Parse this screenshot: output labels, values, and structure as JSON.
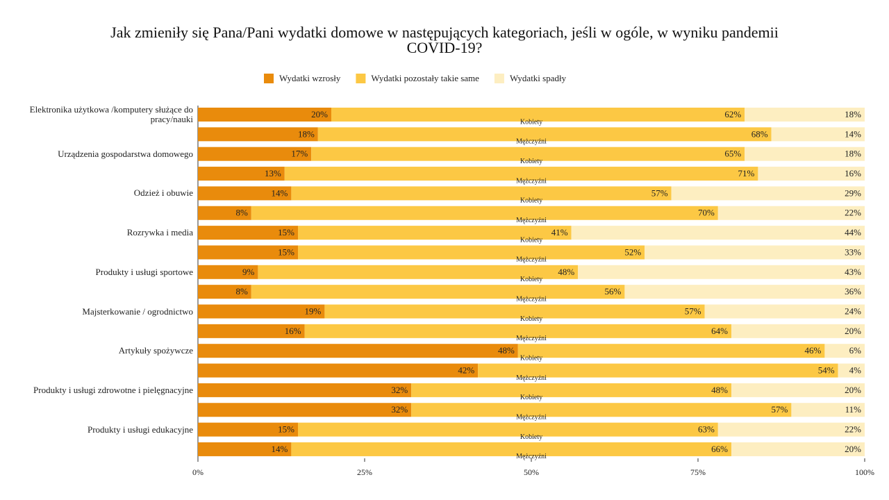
{
  "chart_data": {
    "type": "stacked-bar",
    "orientation": "horizontal",
    "title": "Jak zmieniły się Pana/Pani wydatki domowe w następujących kategoriach, jeśli w ogóle, w wyniku pandemii COVID-19?",
    "categories": [
      "Elektronika użytkowa /komputery służące do pracy/nauki",
      null,
      "Urządzenia gospodarstwa domowego",
      null,
      "Odzież i obuwie",
      null,
      "Rozrywka i media",
      null,
      "Produkty i usługi sportowe",
      null,
      "Majsterkowanie / ogrodnictwo",
      null,
      "Artykuły spożywcze",
      null,
      "Produkty i usługi zdrowotne i pielęgnacyjne",
      null,
      "Produkty i usługi edukacyjne",
      null
    ],
    "groups": [
      "Kobiety",
      "Mężczyźni",
      "Kobiety",
      "Mężczyźni",
      "Kobiety",
      "Mężczyźni",
      "Kobiety",
      "Mężczyźni",
      "Kobiety",
      "Mężczyźni",
      "Kobiety",
      "Mężczyźni",
      "Kobiety",
      "Mężczyźni",
      "Kobiety",
      "Mężczyźni",
      "Kobiety",
      "Mężczyźni"
    ],
    "series": [
      {
        "name": "Wydatki wzrosły",
        "color": "#e98b0c",
        "values": [
          20,
          18,
          17,
          13,
          14,
          8,
          15,
          15,
          9,
          8,
          19,
          16,
          48,
          42,
          32,
          32,
          15,
          14
        ],
        "value_labels": [
          "20%",
          "18%",
          "17%",
          "13%",
          "14%",
          "8%",
          "15%",
          "15%",
          "9%",
          "8%",
          "19%",
          "16%",
          "48%",
          "42%",
          "32%",
          "32%",
          "15%",
          "14%"
        ]
      },
      {
        "name": "Wydatki pozostały takie same",
        "color": "#fcc844",
        "values": [
          62,
          68,
          65,
          71,
          57,
          70,
          41,
          52,
          48,
          56,
          57,
          64,
          46,
          54,
          48,
          57,
          63,
          66
        ],
        "value_labels": [
          "62%",
          "68%",
          "65%",
          "71%",
          "57%",
          "70%",
          "41%",
          "52%",
          "48%",
          "56%",
          "57%",
          "64%",
          "46%",
          "54%",
          "48%",
          "57%",
          "63%",
          "66%"
        ]
      },
      {
        "name": "Wydatki spadły",
        "color": "#fdeec1",
        "values": [
          18,
          14,
          18,
          16,
          29,
          22,
          44,
          33,
          43,
          36,
          24,
          20,
          6,
          4,
          20,
          11,
          22,
          20
        ],
        "value_labels": [
          "18%",
          "14%",
          "18%",
          "16%",
          "29%",
          "22%",
          "44%",
          "33%",
          "43%",
          "36%",
          "24%",
          "20%",
          "6%",
          "4%",
          "20%",
          "11%",
          "22%",
          "20%"
        ]
      }
    ],
    "xlim": [
      0,
      100
    ],
    "xticks": [
      {
        "value": 0,
        "label": "0%"
      },
      {
        "value": 25,
        "label": "25%"
      },
      {
        "value": 50,
        "label": "50%"
      },
      {
        "value": 75,
        "label": "75%"
      },
      {
        "value": 100,
        "label": "100%"
      }
    ],
    "legend": "top"
  }
}
